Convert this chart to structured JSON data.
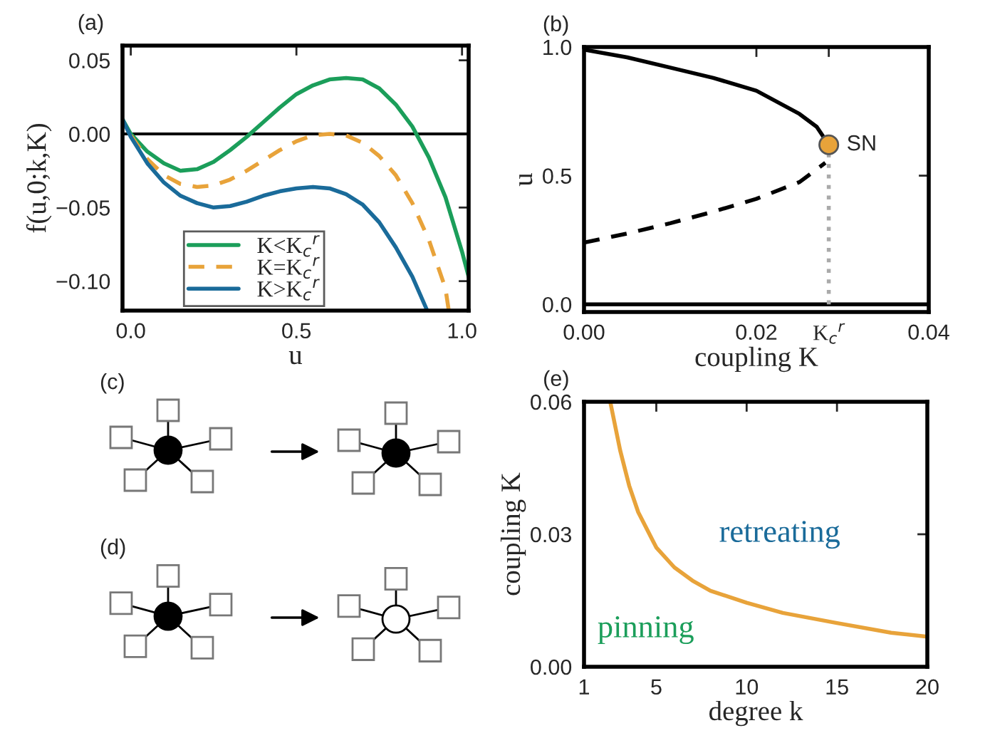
{
  "chart_data": [
    {
      "type": "line",
      "title": "(a)",
      "xlabel": "u",
      "ylabel": "f(u,0;k,K)",
      "xlim": [
        -0.025,
        1.02
      ],
      "ylim": [
        -0.12,
        0.06
      ],
      "xticks": [
        {
          "value": 0,
          "label": "0.0"
        },
        0.5,
        {
          "value": 1,
          "label": "1.0"
        }
      ],
      "yticks": [
        {
          "value": -0.1,
          "label": "−0.10"
        },
        {
          "value": -0.05,
          "label": "−0.05"
        },
        {
          "value": 0,
          "label": "0.00"
        },
        0.05
      ],
      "ref_lines": [
        {
          "axis": "y",
          "value": 0,
          "color": "#000000"
        }
      ],
      "legend": "bottom",
      "series": [
        {
          "name": "K<K$_{c}$$^{r}$",
          "color": "#1b9e5a",
          "line_style": "solid",
          "x": [
            -0.025,
            0,
            0.05,
            0.1,
            0.15,
            0.2,
            0.25,
            0.3,
            0.35,
            0.4,
            0.45,
            0.5,
            0.55,
            0.6,
            0.65,
            0.7,
            0.75,
            0.8,
            0.85,
            0.9,
            0.95,
            1.0,
            1.02
          ],
          "values": [
            0.01,
            0.0,
            -0.012,
            -0.02,
            -0.025,
            -0.024,
            -0.019,
            -0.011,
            -0.002,
            0.008,
            0.018,
            0.027,
            0.033,
            0.037,
            0.038,
            0.037,
            0.031,
            0.02,
            0.005,
            -0.016,
            -0.043,
            -0.08,
            -0.097
          ]
        },
        {
          "name": "K=K$_{c}$$^{r}$",
          "color": "#e8a33a",
          "line_style": "dashed",
          "x": [
            0,
            0.05,
            0.1,
            0.15,
            0.2,
            0.25,
            0.3,
            0.35,
            0.4,
            0.45,
            0.5,
            0.55,
            0.6,
            0.65,
            0.7,
            0.75,
            0.8,
            0.85,
            0.9,
            0.95,
            0.96
          ],
          "values": [
            -0.001,
            -0.017,
            -0.028,
            -0.034,
            -0.036,
            -0.035,
            -0.031,
            -0.025,
            -0.018,
            -0.011,
            -0.005,
            -0.001,
            0.0,
            -0.001,
            -0.006,
            -0.015,
            -0.028,
            -0.047,
            -0.072,
            -0.105,
            -0.12
          ]
        },
        {
          "name": "K>K$_{c}$$^{r}$",
          "color": "#1a6b9a",
          "line_style": "solid",
          "x": [
            -0.025,
            0,
            0.05,
            0.1,
            0.15,
            0.2,
            0.25,
            0.3,
            0.35,
            0.4,
            0.45,
            0.5,
            0.55,
            0.6,
            0.65,
            0.7,
            0.75,
            0.8,
            0.85,
            0.895
          ],
          "values": [
            0.01,
            -0.002,
            -0.02,
            -0.033,
            -0.042,
            -0.047,
            -0.05,
            -0.049,
            -0.046,
            -0.042,
            -0.039,
            -0.037,
            -0.036,
            -0.037,
            -0.041,
            -0.048,
            -0.06,
            -0.077,
            -0.097,
            -0.12
          ]
        }
      ]
    },
    {
      "type": "line",
      "title": "(b)",
      "xlabel": "coupling K",
      "ylabel": "u",
      "xlim": [
        0,
        0.04
      ],
      "ylim": [
        -0.03,
        1.0
      ],
      "xticks": [
        {
          "value": 0,
          "label": "0.00"
        },
        0.02,
        {
          "value": 0.0284,
          "label": "K$_{c}$$^{r}$"
        },
        0.04
      ],
      "yticks": [
        {
          "value": 0,
          "label": "0.0"
        },
        0.5,
        {
          "value": 1,
          "label": "1.0"
        }
      ],
      "annotations": [
        {
          "text": "SN",
          "x": 0.0284,
          "y": 0.62
        }
      ],
      "series": [
        {
          "color": "#000000",
          "line_style": "solid",
          "x": [
            0,
            0.005,
            0.01,
            0.015,
            0.02,
            0.025,
            0.027,
            0.0284
          ],
          "values": [
            0.99,
            0.96,
            0.92,
            0.88,
            0.83,
            0.74,
            0.69,
            0.62
          ]
        },
        {
          "color": "#000000",
          "line_style": "dashed",
          "x": [
            0,
            0.005,
            0.01,
            0.015,
            0.02,
            0.025,
            0.028
          ],
          "values": [
            0.24,
            0.275,
            0.315,
            0.36,
            0.41,
            0.475,
            0.55
          ]
        },
        {
          "color": "#000000",
          "line_style": "solid",
          "x": [
            0,
            0.04
          ],
          "values": [
            0,
            0
          ]
        },
        {
          "color": "#aaaaaa",
          "line_style": "dotted",
          "x": [
            0.0284,
            0.0284
          ],
          "values": [
            0,
            0.62
          ]
        },
        {
          "type": "scatter",
          "color": "#e8a33a",
          "marker": "circle",
          "x": [
            0.0284
          ],
          "values": [
            0.62
          ]
        }
      ]
    },
    {
      "type": "other",
      "title": "(c)"
    },
    {
      "type": "other",
      "title": "(d)"
    },
    {
      "type": "line",
      "title": "(e)",
      "xlabel": "degree k",
      "ylabel": "coupling K",
      "xlim": [
        1,
        20
      ],
      "ylim": [
        0,
        0.06
      ],
      "xticks": [
        1,
        5,
        10,
        15,
        20
      ],
      "yticks": [
        {
          "value": 0,
          "label": "0.00"
        },
        0.03,
        0.06
      ],
      "annotations": [
        "retreating",
        "pinning"
      ],
      "series": [
        {
          "color": "#e8a33a",
          "line_style": "solid",
          "x": [
            2.45,
            3,
            3.5,
            4,
            5,
            6,
            7,
            8,
            10,
            12,
            15,
            18,
            20
          ],
          "values": [
            0.06,
            0.049,
            0.041,
            0.035,
            0.027,
            0.0225,
            0.0195,
            0.0172,
            0.0145,
            0.0122,
            0.0099,
            0.0077,
            0.0068
          ]
        }
      ]
    }
  ]
}
